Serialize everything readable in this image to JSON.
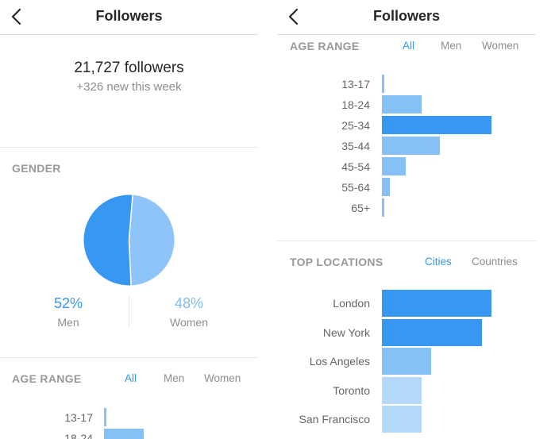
{
  "left_screen": {
    "title": "Followers",
    "summary": {
      "followers": "21,727 followers",
      "new_this_week": "+326 new this week"
    },
    "gender": {
      "title": "GENDER",
      "men_percent": "52%",
      "men_label": "Men",
      "women_percent": "48%",
      "women_label": "Women",
      "men_value": 52,
      "women_value": 48
    },
    "age_range": {
      "title": "AGE RANGE",
      "filters": [
        "All",
        "Men",
        "Women"
      ],
      "active_filter": "All",
      "rows": [
        {
          "label": "13-17",
          "value": 2
        },
        {
          "label": "18-24",
          "value": 36
        }
      ]
    }
  },
  "right_screen": {
    "title": "Followers",
    "age_range": {
      "title": "AGE RANGE",
      "filters": [
        "All",
        "Men",
        "Women"
      ],
      "active_filter": "All",
      "rows": [
        {
          "label": "13-17",
          "value": 2,
          "highlight": false
        },
        {
          "label": "18-24",
          "value": 36,
          "highlight": false
        },
        {
          "label": "25-34",
          "value": 100,
          "highlight": true
        },
        {
          "label": "35-44",
          "value": 53,
          "highlight": false
        },
        {
          "label": "45-54",
          "value": 22,
          "highlight": false
        },
        {
          "label": "55-64",
          "value": 7,
          "highlight": false
        },
        {
          "label": "65+",
          "value": 2,
          "highlight": false
        }
      ]
    },
    "top_locations": {
      "title": "TOP LOCATIONS",
      "filters": [
        "Cities",
        "Countries"
      ],
      "active_filter": "Cities",
      "rows": [
        {
          "label": "London",
          "value": 100,
          "tone": "strong"
        },
        {
          "label": "New York",
          "value": 91,
          "tone": "strong"
        },
        {
          "label": "Los Angeles",
          "value": 45,
          "tone": "medium"
        },
        {
          "label": "Toronto",
          "value": 36,
          "tone": "light"
        },
        {
          "label": "San Francisco",
          "value": 36,
          "tone": "light"
        }
      ]
    }
  },
  "colors": {
    "accent": "#3897f0",
    "bar_strong": "#3897f0",
    "bar_medium": "#86c0f7",
    "bar_light": "#b4d9fb",
    "pie_men": "#3897f0",
    "pie_women": "#8fc4fa",
    "women_text": "#7fbcf6"
  },
  "icons": {
    "back": "chevron-left-icon"
  }
}
